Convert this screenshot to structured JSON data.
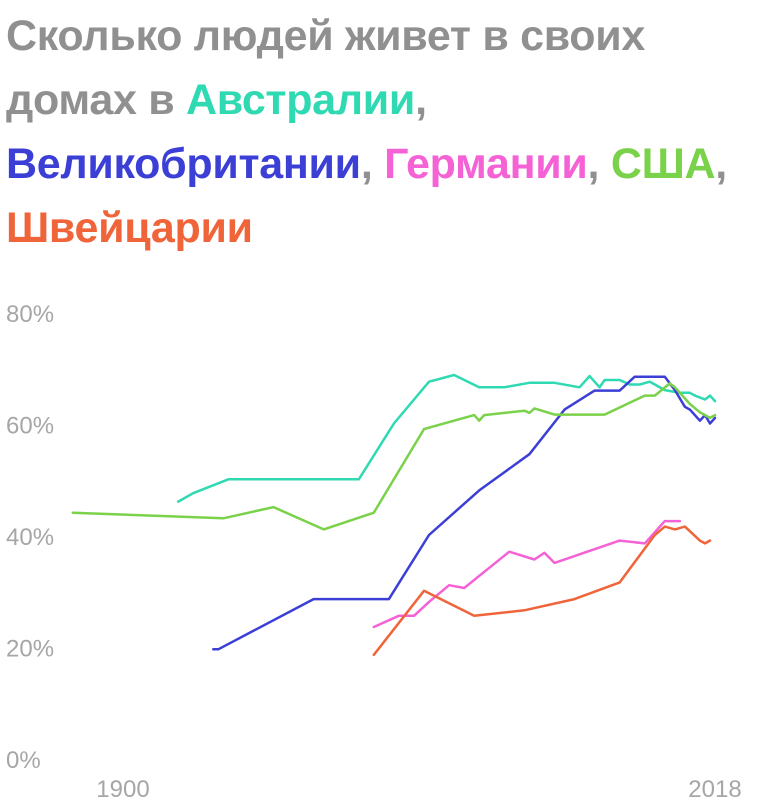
{
  "chart_data": {
    "type": "line",
    "title_parts": [
      {
        "text": "Сколько людей живет в своих домах в ",
        "color": "#909090"
      },
      {
        "text": "Австралии",
        "color": "#2fd9b1"
      },
      {
        "text": ", ",
        "color": "#909090"
      },
      {
        "text": "Великобритании",
        "color": "#3c3fd6"
      },
      {
        "text": ", ",
        "color": "#909090"
      },
      {
        "text": "Германии",
        "color": "#f462d6"
      },
      {
        "text": ", ",
        "color": "#909090"
      },
      {
        "text": "США",
        "color": "#7ad14a"
      },
      {
        "text": ", ",
        "color": "#909090"
      },
      {
        "text": "Швейцарии",
        "color": "#f0643a"
      }
    ],
    "xlim": [
      1900,
      2018
    ],
    "ylim": [
      0,
      80
    ],
    "x_ticks": [
      1900,
      2018
    ],
    "x_tick_labels": [
      "1900",
      "2018"
    ],
    "y_ticks": [
      0,
      20,
      40,
      60,
      80
    ],
    "y_tick_labels": [
      "0%",
      "20%",
      "40%",
      "60%",
      "80%"
    ],
    "grid": false,
    "series": [
      {
        "color": "#2fd9b1",
        "points": [
          [
            1911,
            46
          ],
          [
            1914,
            47.5
          ],
          [
            1921,
            50
          ],
          [
            1947,
            50
          ],
          [
            1954,
            60
          ],
          [
            1961,
            67.5
          ],
          [
            1966,
            68.7
          ],
          [
            1971,
            66.5
          ],
          [
            1976,
            66.5
          ],
          [
            1981,
            67.3
          ],
          [
            1986,
            67.3
          ],
          [
            1991,
            66.5
          ],
          [
            1993,
            68.5
          ],
          [
            1995,
            66.5
          ],
          [
            1996,
            67.8
          ],
          [
            1999,
            67.8
          ],
          [
            2001,
            67
          ],
          [
            2003,
            67
          ],
          [
            2005,
            67.5
          ],
          [
            2006,
            67
          ],
          [
            2008,
            66
          ],
          [
            2011,
            65.5
          ],
          [
            2013,
            65.5
          ],
          [
            2014,
            65
          ],
          [
            2016,
            64.3
          ],
          [
            2017,
            65
          ],
          [
            2018,
            64
          ]
        ]
      },
      {
        "color": "#3c3fd6",
        "points": [
          [
            1918,
            19.5
          ],
          [
            1919,
            19.5
          ],
          [
            1938,
            28.5
          ],
          [
            1953,
            28.5
          ],
          [
            1961,
            40
          ],
          [
            1971,
            48
          ],
          [
            1981,
            54.5
          ],
          [
            1988,
            62.5
          ],
          [
            1994,
            65.9
          ],
          [
            1999,
            65.9
          ],
          [
            2002,
            68.4
          ],
          [
            2008,
            68.4
          ],
          [
            2010,
            66
          ],
          [
            2012,
            63
          ],
          [
            2013,
            62.5
          ],
          [
            2015,
            60.5
          ],
          [
            2016,
            61.5
          ],
          [
            2017,
            60
          ],
          [
            2018,
            61
          ]
        ]
      },
      {
        "color": "#f462d6",
        "points": [
          [
            1950,
            23.5
          ],
          [
            1955,
            25.5
          ],
          [
            1958,
            25.5
          ],
          [
            1961,
            28
          ],
          [
            1965,
            31
          ],
          [
            1968,
            30.5
          ],
          [
            1977,
            37
          ],
          [
            1982,
            35.6
          ],
          [
            1984,
            36.8
          ],
          [
            1986,
            35
          ],
          [
            1999,
            39
          ],
          [
            2004,
            38.5
          ],
          [
            2008,
            42.5
          ],
          [
            2011,
            42.5
          ]
        ]
      },
      {
        "color": "#7ad14a",
        "points": [
          [
            1890,
            44
          ],
          [
            1920,
            43
          ],
          [
            1930,
            45
          ],
          [
            1940,
            41
          ],
          [
            1950,
            44
          ],
          [
            1960,
            59
          ],
          [
            1970,
            61.5
          ],
          [
            1971,
            60.5
          ],
          [
            1972,
            61.5
          ],
          [
            1980,
            62.3
          ],
          [
            1981,
            61.9
          ],
          [
            1982,
            62.7
          ],
          [
            1986,
            61.6
          ],
          [
            1996,
            61.6
          ],
          [
            2004,
            65
          ],
          [
            2006,
            65
          ],
          [
            2009,
            67.2
          ],
          [
            2010,
            66.5
          ],
          [
            2013,
            63.5
          ],
          [
            2015,
            62
          ],
          [
            2017,
            61
          ],
          [
            2018,
            61.5
          ]
        ]
      },
      {
        "color": "#f0643a",
        "points": [
          [
            1950,
            18.5
          ],
          [
            1960,
            30
          ],
          [
            1970,
            25.5
          ],
          [
            1980,
            26.5
          ],
          [
            1990,
            28.5
          ],
          [
            1999,
            31.5
          ],
          [
            2006,
            40
          ],
          [
            2008,
            41.5
          ],
          [
            2010,
            41
          ],
          [
            2012,
            41.5
          ],
          [
            2015,
            39
          ],
          [
            2016,
            38.5
          ],
          [
            2017,
            39
          ]
        ]
      }
    ]
  }
}
